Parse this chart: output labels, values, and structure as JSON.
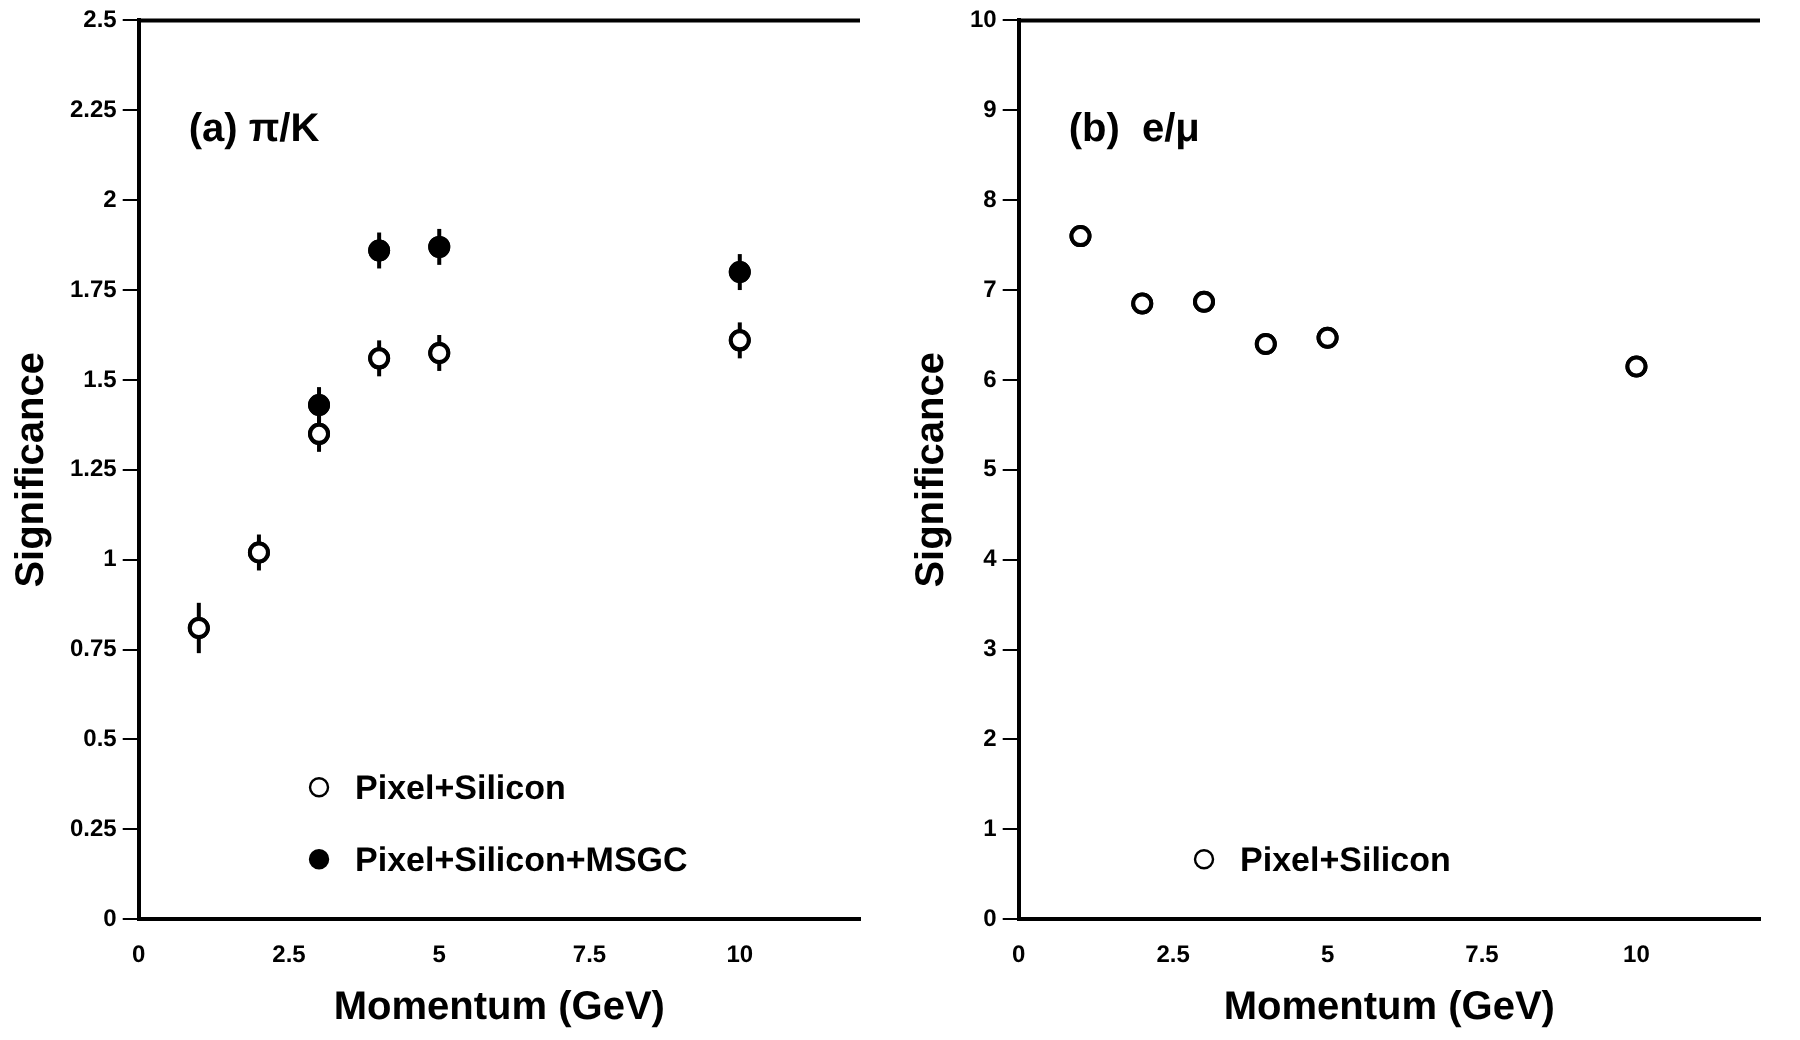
{
  "chart_data": [
    {
      "type": "scatter",
      "annotations": [
        "(a) π/K"
      ],
      "xlabel": "Momentum (GeV)",
      "ylabel": "Significance",
      "xlim": [
        0,
        12
      ],
      "xticks": [
        0,
        2.5,
        5,
        7.5,
        10
      ],
      "ylim": [
        0,
        2.5
      ],
      "yticks": [
        0,
        0.25,
        0.5,
        0.75,
        1,
        1.25,
        1.5,
        1.75,
        2,
        2.25,
        2.5
      ],
      "grid": false,
      "legend": "bottom",
      "marker": "circle",
      "series": [
        {
          "name": "Pixel+Silicon",
          "color": "#ffffff",
          "x": [
            1,
            2,
            3,
            4,
            5,
            10
          ],
          "values": [
            0.81,
            1.02,
            1.35,
            1.56,
            1.575,
            1.61
          ],
          "errors": [
            0.07,
            0.05,
            0.05,
            0.05,
            0.05,
            0.05
          ]
        },
        {
          "name": "Pixel+Silicon+MSGC",
          "color": "#000000",
          "x": [
            3,
            4,
            5,
            10
          ],
          "values": [
            1.43,
            1.86,
            1.87,
            1.8
          ],
          "errors": [
            0.05,
            0.05,
            0.05,
            0.05
          ]
        }
      ]
    },
    {
      "type": "scatter",
      "annotations": [
        "(b)  e/μ"
      ],
      "xlabel": "Momentum (GeV)",
      "ylabel": "Significance",
      "xlim": [
        0,
        12
      ],
      "xticks": [
        0,
        2.5,
        5,
        7.5,
        10
      ],
      "ylim": [
        0,
        10
      ],
      "yticks": [
        0,
        1,
        2,
        3,
        4,
        5,
        6,
        7,
        8,
        9,
        10
      ],
      "grid": false,
      "legend": "bottom",
      "marker": "circle",
      "series": [
        {
          "name": "Pixel+Silicon",
          "color": "#ffffff",
          "x": [
            1,
            2,
            3,
            4,
            5,
            10
          ],
          "values": [
            7.6,
            6.85,
            6.87,
            6.4,
            6.47,
            6.15
          ]
        }
      ]
    }
  ]
}
